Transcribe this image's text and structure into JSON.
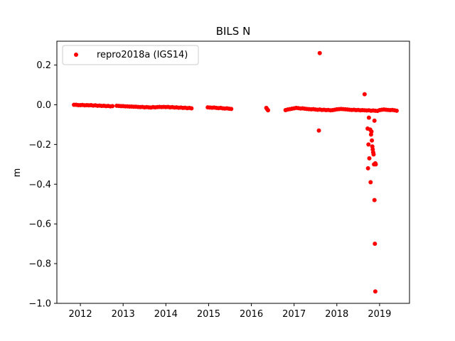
{
  "chart_data": {
    "type": "scatter",
    "title": "BILS N",
    "xlabel": "",
    "ylabel": "m",
    "xlim": [
      2011.45,
      2019.7
    ],
    "ylim": [
      -1.0,
      0.32
    ],
    "x_ticks": [
      2012,
      2013,
      2014,
      2015,
      2016,
      2017,
      2018,
      2019
    ],
    "x_tick_labels": [
      "2012",
      "2013",
      "2014",
      "2015",
      "2016",
      "2017",
      "2018",
      "2019"
    ],
    "y_ticks": [
      0.2,
      0.0,
      -0.2,
      -0.4,
      -0.6,
      -0.8,
      -1.0
    ],
    "y_tick_labels": [
      "0.2",
      "0.0",
      "−0.2",
      "−0.4",
      "−0.6",
      "−0.8",
      "−1.0"
    ],
    "grid": false,
    "legend_position": "top-left",
    "series": [
      {
        "name": "repro2018a (IGS14)",
        "color": "#ff0000",
        "marker": "circle",
        "x": [
          2011.85,
          2011.9,
          2011.95,
          2012.0,
          2012.05,
          2012.1,
          2012.15,
          2012.2,
          2012.25,
          2012.3,
          2012.35,
          2012.4,
          2012.45,
          2012.5,
          2012.55,
          2012.6,
          2012.65,
          2012.7,
          2012.75,
          2012.85,
          2012.9,
          2012.95,
          2013.0,
          2013.05,
          2013.1,
          2013.15,
          2013.2,
          2013.25,
          2013.3,
          2013.35,
          2013.4,
          2013.45,
          2013.5,
          2013.55,
          2013.6,
          2013.65,
          2013.7,
          2013.75,
          2013.8,
          2013.85,
          2013.9,
          2013.95,
          2014.0,
          2014.05,
          2014.1,
          2014.15,
          2014.2,
          2014.25,
          2014.3,
          2014.35,
          2014.4,
          2014.45,
          2014.5,
          2014.55,
          2014.6,
          2014.98,
          2015.03,
          2015.08,
          2015.13,
          2015.18,
          2015.23,
          2015.28,
          2015.33,
          2015.38,
          2015.43,
          2015.48,
          2015.53,
          2016.35,
          2016.37,
          2016.39,
          2016.8,
          2016.85,
          2016.9,
          2016.95,
          2017.0,
          2017.05,
          2017.1,
          2017.15,
          2017.2,
          2017.25,
          2017.3,
          2017.35,
          2017.4,
          2017.45,
          2017.5,
          2017.55,
          2017.6,
          2017.65,
          2017.7,
          2017.75,
          2017.8,
          2017.85,
          2017.9,
          2017.95,
          2018.0,
          2018.05,
          2018.1,
          2018.15,
          2018.2,
          2018.25,
          2018.3,
          2018.35,
          2018.4,
          2018.45,
          2018.5,
          2018.55,
          2018.6,
          2018.65,
          2018.7,
          2018.75,
          2018.8,
          2018.85,
          2018.9,
          2018.95,
          2019.0,
          2019.05,
          2019.1,
          2019.15,
          2019.2,
          2019.25,
          2019.3,
          2019.35,
          2019.4,
          2017.6,
          2017.58,
          2018.65,
          2018.72,
          2018.75,
          2018.78,
          2018.8,
          2018.82,
          2018.83,
          2018.85,
          2018.86,
          2018.87,
          2018.88,
          2018.9,
          2018.74,
          2018.76,
          2018.73,
          2018.79,
          2018.81,
          2018.84,
          2018.88,
          2018.89,
          2018.9,
          2018.91
        ],
        "y": [
          0.0,
          0.0,
          -0.002,
          -0.002,
          -0.001,
          -0.003,
          -0.002,
          -0.003,
          -0.002,
          -0.004,
          -0.003,
          -0.005,
          -0.004,
          -0.006,
          -0.005,
          -0.007,
          -0.006,
          -0.008,
          -0.007,
          -0.005,
          -0.006,
          -0.007,
          -0.007,
          -0.008,
          -0.008,
          -0.009,
          -0.009,
          -0.01,
          -0.01,
          -0.011,
          -0.012,
          -0.011,
          -0.013,
          -0.012,
          -0.013,
          -0.014,
          -0.012,
          -0.013,
          -0.012,
          -0.011,
          -0.012,
          -0.011,
          -0.012,
          -0.011,
          -0.013,
          -0.012,
          -0.014,
          -0.013,
          -0.015,
          -0.014,
          -0.016,
          -0.015,
          -0.017,
          -0.016,
          -0.018,
          -0.013,
          -0.014,
          -0.015,
          -0.014,
          -0.016,
          -0.017,
          -0.016,
          -0.018,
          -0.019,
          -0.018,
          -0.02,
          -0.021,
          -0.016,
          -0.022,
          -0.028,
          -0.027,
          -0.024,
          -0.022,
          -0.02,
          -0.018,
          -0.016,
          -0.017,
          -0.019,
          -0.018,
          -0.02,
          -0.021,
          -0.022,
          -0.023,
          -0.022,
          -0.024,
          -0.025,
          -0.024,
          -0.026,
          -0.025,
          -0.027,
          -0.026,
          -0.028,
          -0.027,
          -0.025,
          -0.023,
          -0.022,
          -0.021,
          -0.022,
          -0.023,
          -0.024,
          -0.025,
          -0.026,
          -0.025,
          -0.027,
          -0.026,
          -0.028,
          -0.027,
          -0.028,
          -0.029,
          -0.028,
          -0.03,
          -0.029,
          -0.03,
          -0.031,
          -0.027,
          -0.025,
          -0.024,
          -0.025,
          -0.026,
          -0.027,
          -0.026,
          -0.028,
          -0.03,
          0.26,
          -0.13,
          0.053,
          -0.12,
          -0.065,
          -0.125,
          -0.15,
          -0.18,
          -0.21,
          -0.24,
          -0.25,
          -0.3,
          -0.08,
          -0.295,
          -0.2,
          -0.27,
          -0.32,
          -0.39,
          -0.135,
          -0.225,
          -0.48,
          -0.7,
          -0.94,
          -0.3
        ]
      }
    ]
  }
}
